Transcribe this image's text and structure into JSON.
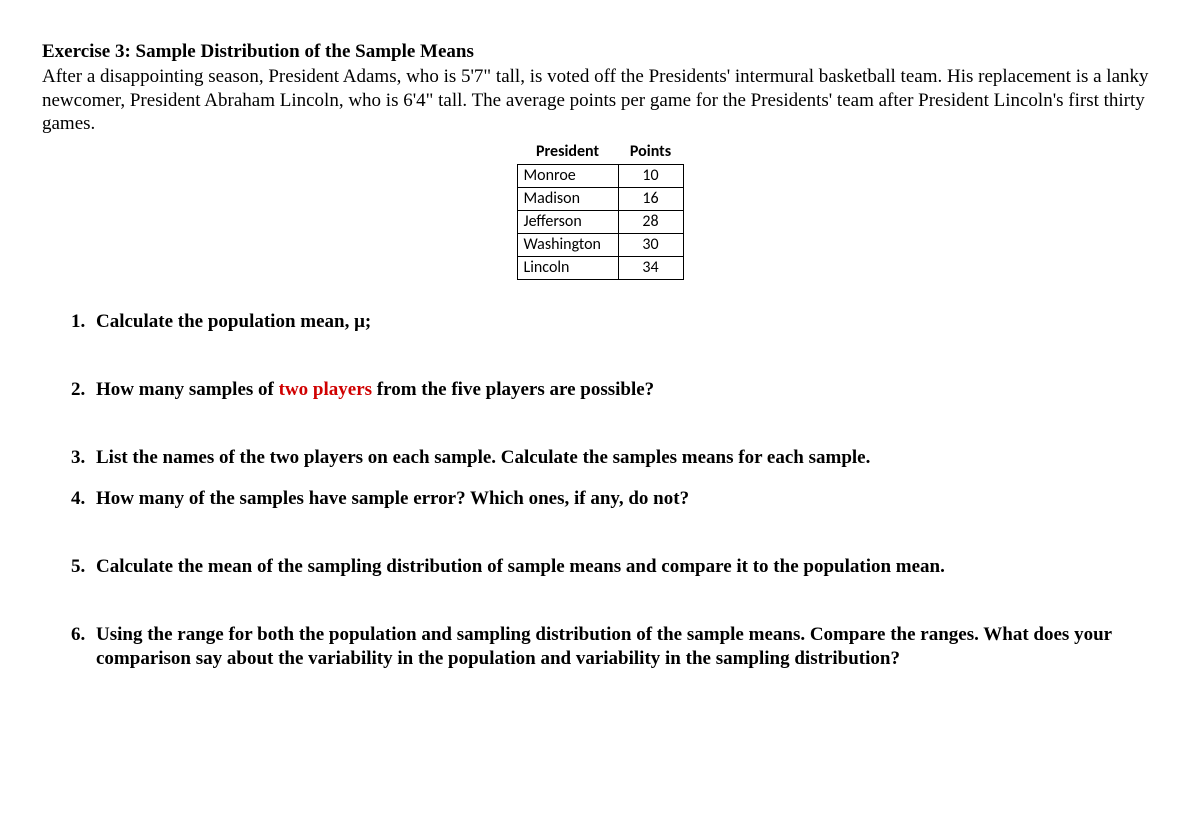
{
  "title": "Exercise 3: Sample Distribution of the Sample Means",
  "intro": "After a disappointing season, President Adams, who is 5'7\" tall, is voted off the Presidents' intermural basketball team. His replacement is a lanky newcomer, President Abraham Lincoln, who is 6'4\" tall. The average points per game for the Presidents' team after President Lincoln's first thirty games.",
  "table": {
    "headers": {
      "col1": "President",
      "col2": "Points"
    },
    "rows": [
      {
        "name": "Monroe",
        "points": "10"
      },
      {
        "name": "Madison",
        "points": "16"
      },
      {
        "name": "Jefferson",
        "points": "28"
      },
      {
        "name": "Washington",
        "points": "30"
      },
      {
        "name": "Lincoln",
        "points": "34"
      }
    ]
  },
  "questions": {
    "q1": "Calculate the population mean, μ;",
    "q2a": "How many samples of ",
    "q2b": "two players",
    "q2c": " from the five players are possible?",
    "q3": "List the names of the two players on each sample. Calculate the samples means for each sample.",
    "q4": "How many of the samples have sample error? Which ones, if any, do not?",
    "q5": "Calculate the mean of the sampling distribution of sample means and compare it to the population mean.",
    "q6": "Using the range for both the population and sampling distribution of the sample means. Compare the ranges. What does your comparison say about the variability in the population and variability in the sampling distribution?"
  }
}
